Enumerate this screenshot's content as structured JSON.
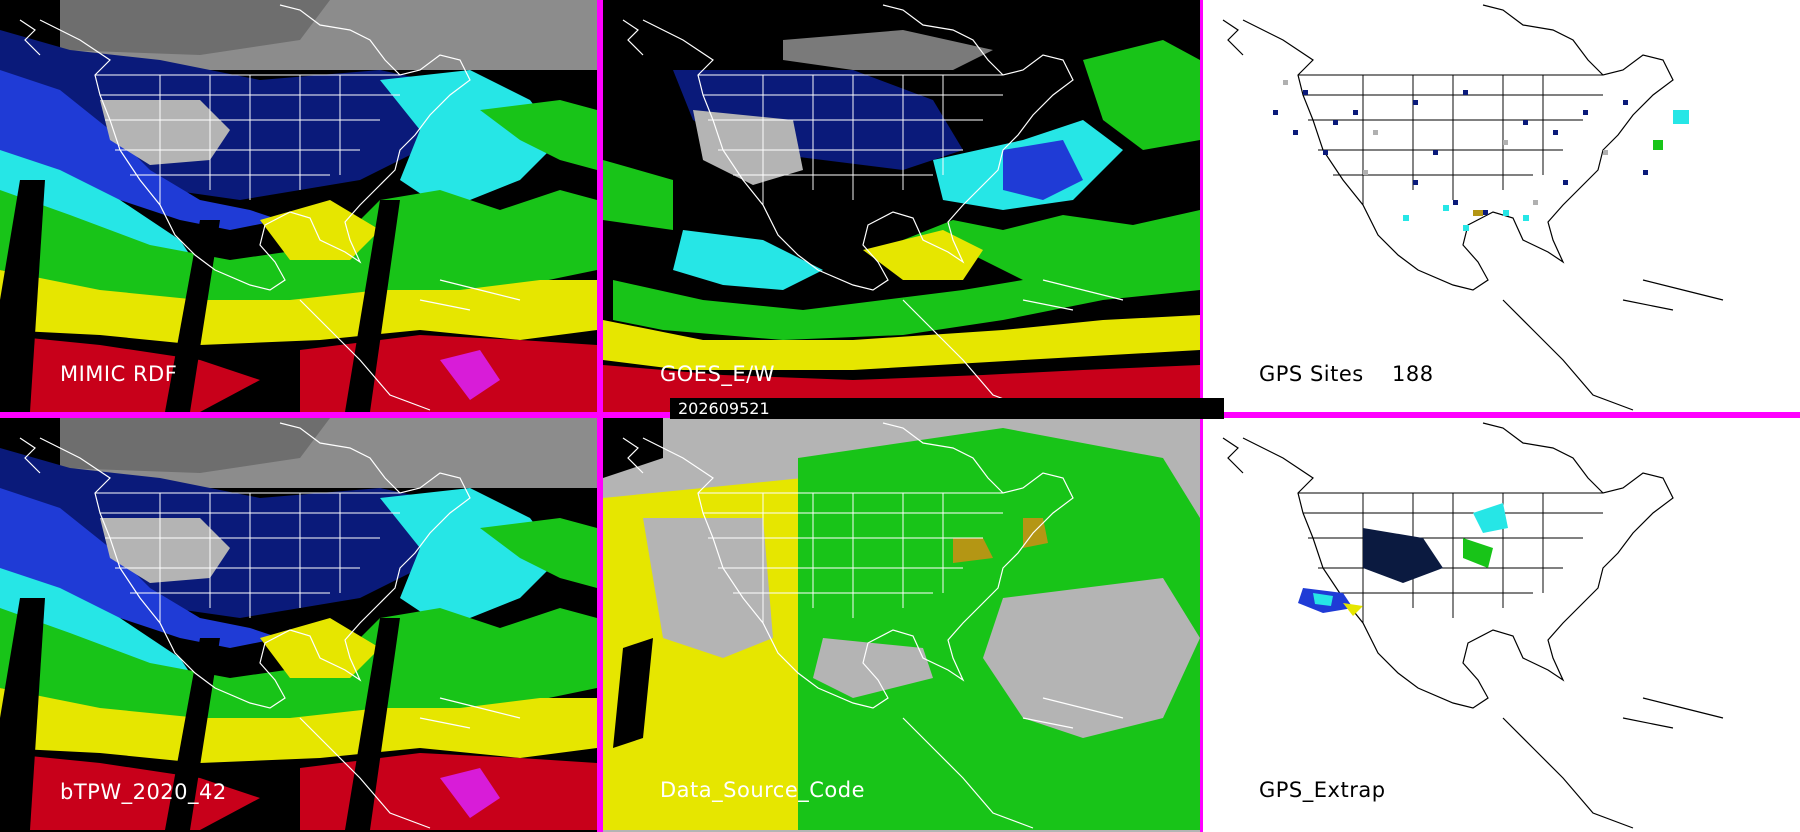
{
  "panels": [
    {
      "id": "mimic",
      "label": "MIMIC RDF",
      "style": "tpw"
    },
    {
      "id": "goes",
      "label": "GOES_E/W",
      "style": "goes"
    },
    {
      "id": "gps_sites",
      "label": "GPS Sites",
      "count": "188",
      "style": "gps"
    },
    {
      "id": "btpw",
      "label": "bTPW_2020_42",
      "style": "tpw"
    },
    {
      "id": "source",
      "label": "Data_Source_Code",
      "style": "source"
    },
    {
      "id": "gps_extrap",
      "label": "GPS_Extrap",
      "style": "gpsx"
    }
  ],
  "timestamp": "202609521",
  "colors": {
    "divider": "#ff00ff",
    "gray": "#b4b4b4",
    "navy": "#0a1a7a",
    "blue": "#1f3bd6",
    "cyan": "#26e6e6",
    "green": "#18c418",
    "yellow": "#e6e600",
    "olive": "#b49614",
    "red": "#c8001a",
    "magenta": "#d81cd8"
  }
}
